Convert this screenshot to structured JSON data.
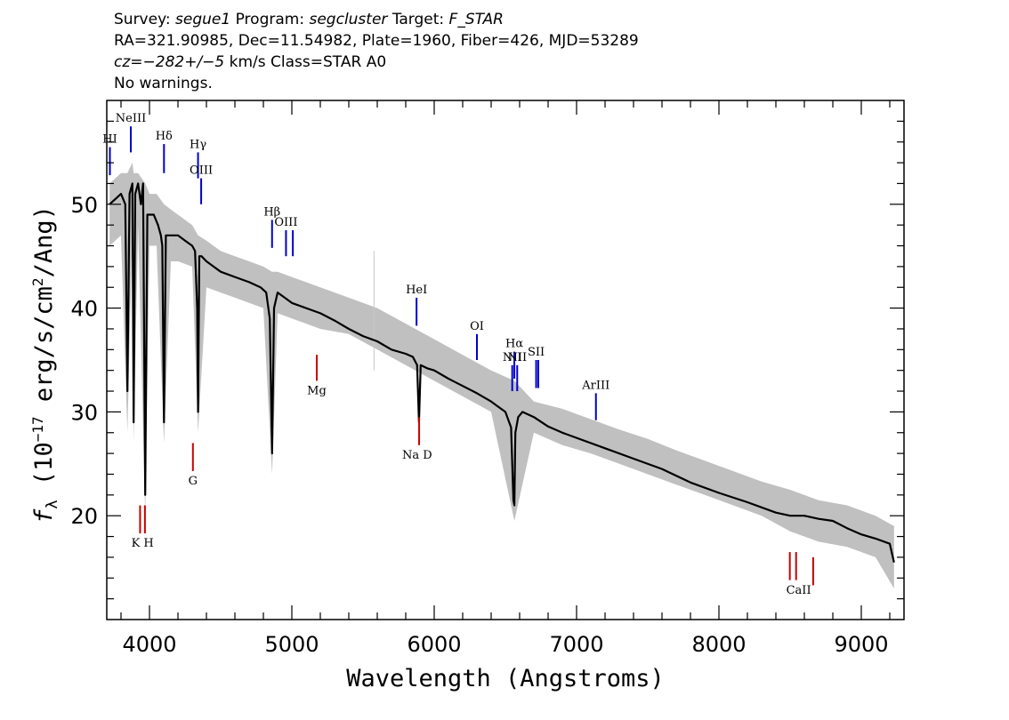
{
  "header": {
    "survey_label": "Survey:",
    "survey_value": "segue1",
    "program_label": "Program:",
    "program_value": "segcluster",
    "target_label": "Target:",
    "target_value": "F_STAR",
    "line2": "RA=321.90985, Dec=11.54982, Plate=1960, Fiber=426, MJD=53289",
    "cz_label": "cz=",
    "cz_value": "−282+/−5",
    "cz_unit_class": " km/s Class=STAR A0",
    "warnings": "No warnings."
  },
  "chart_data": {
    "type": "line",
    "xlabel": "Wavelength (Angstroms)",
    "ylabel_parts": {
      "symbol": "f",
      "sub": "λ",
      "pre": " (10",
      "exp1": "−17",
      "mid": " erg/s/cm",
      "exp2": "2",
      "post": "/Ang)"
    },
    "xlim": [
      3700,
      9300
    ],
    "ylim": [
      10,
      60
    ],
    "x_ticks": [
      4000,
      5000,
      6000,
      7000,
      8000,
      9000
    ],
    "x_tick_labels": [
      "4000",
      "5000",
      "6000",
      "7000",
      "8000",
      "9000"
    ],
    "y_ticks": [
      20,
      30,
      40,
      50
    ],
    "y_tick_labels": [
      "20",
      "30",
      "40",
      "50"
    ],
    "series": [
      {
        "style": "flux",
        "color": "#000000",
        "x": [
          3720,
          3800,
          3830,
          3845,
          3860,
          3880,
          3889,
          3900,
          3920,
          3940,
          3955,
          3970,
          3985,
          4000,
          4030,
          4060,
          4080,
          4090,
          4102,
          4115,
          4130,
          4160,
          4200,
          4250,
          4300,
          4320,
          4335,
          4341,
          4350,
          4365,
          4400,
          4450,
          4500,
          4600,
          4700,
          4780,
          4820,
          4845,
          4861,
          4875,
          4900,
          4950,
          5000,
          5100,
          5200,
          5300,
          5400,
          5500,
          5600,
          5700,
          5800,
          5850,
          5880,
          5893,
          5905,
          5950,
          6000,
          6100,
          6200,
          6300,
          6400,
          6450,
          6500,
          6540,
          6556,
          6563,
          6570,
          6590,
          6620,
          6700,
          6800,
          6900,
          7000,
          7200,
          7400,
          7600,
          7800,
          8000,
          8200,
          8400,
          8500,
          8600,
          8700,
          8800,
          8900,
          9000,
          9100,
          9200,
          9230
        ],
        "y": [
          50,
          51,
          50,
          32,
          51,
          52,
          29,
          51,
          52,
          50,
          52,
          22,
          49,
          49,
          49,
          48,
          47,
          46,
          29,
          47,
          47,
          47,
          47,
          46.5,
          46,
          45.5,
          40,
          30,
          45,
          45,
          44.5,
          44,
          43.5,
          43,
          42.5,
          42,
          41.5,
          39,
          26,
          40,
          41.5,
          41,
          40.5,
          40,
          39.5,
          38.8,
          38,
          37.3,
          36.8,
          36,
          35.6,
          35.3,
          34.5,
          29,
          34.5,
          34.2,
          34,
          33.2,
          32.5,
          31.8,
          31,
          30.5,
          30,
          28.5,
          21.5,
          21,
          28,
          29.5,
          30,
          29.5,
          28.6,
          28,
          27.5,
          26.5,
          25.5,
          24.5,
          23.2,
          22.2,
          21.3,
          20.3,
          20,
          20,
          19.7,
          19.5,
          18.8,
          18.2,
          17.8,
          17.3,
          15.5
        ]
      },
      {
        "style": "error",
        "color": "#c0c0c0",
        "x": [
          3720,
          3800,
          3845,
          3880,
          3889,
          3920,
          3970,
          4000,
          4050,
          4102,
          4150,
          4200,
          4300,
          4341,
          4400,
          4500,
          4600,
          4700,
          4800,
          4861,
          4900,
          5000,
          5200,
          5400,
          5600,
          5800,
          6000,
          6200,
          6400,
          6563,
          6700,
          6900,
          7100,
          7300,
          7500,
          7700,
          7900,
          8100,
          8300,
          8500,
          8700,
          8900,
          9100,
          9230
        ],
        "upper": [
          52,
          53,
          53,
          54,
          53,
          53,
          52,
          51,
          51,
          50,
          49.5,
          49,
          48,
          47,
          46.5,
          45.5,
          45,
          44.5,
          44,
          43.5,
          43.5,
          43,
          42,
          41,
          40,
          38.5,
          37,
          35.5,
          34,
          33,
          31,
          30.3,
          29.3,
          28.3,
          27.4,
          26.3,
          25.3,
          24.3,
          23.3,
          22.5,
          21.5,
          21,
          20,
          19
        ],
        "lower": [
          46,
          47,
          28,
          48,
          27,
          48,
          20,
          46,
          46,
          27,
          44.5,
          44.5,
          44,
          28,
          42,
          41.5,
          41,
          40.5,
          40,
          24,
          39.5,
          39,
          38,
          37.5,
          36,
          34.5,
          33,
          31.5,
          30,
          19.5,
          28,
          26.8,
          26,
          25,
          24,
          23,
          22,
          21,
          20,
          18.5,
          17.5,
          17,
          16,
          13
        ]
      }
    ],
    "emission_lines": [
      {
        "label": "HI",
        "x": 3722,
        "y_top": 55.5,
        "y_bot": 52.8,
        "color": "#0000cc"
      },
      {
        "label": "NeIII",
        "x": 3869,
        "y_top": 57.5,
        "y_bot": 55,
        "color": "#0000cc"
      },
      {
        "label": "Hδ",
        "x": 4102,
        "y_top": 55.8,
        "y_bot": 53,
        "color": "#0000cc"
      },
      {
        "label": "Hγ",
        "x": 4341,
        "y_top": 55,
        "y_bot": 52.5,
        "color": "#0000cc"
      },
      {
        "label": "OIII",
        "x": 4363,
        "y_top": 52.5,
        "y_bot": 50,
        "color": "#0000cc"
      },
      {
        "label": "Hβ",
        "x": 4861,
        "y_top": 48.5,
        "y_bot": 45.8,
        "color": "#0000cc"
      },
      {
        "label": "OIII",
        "x": 4959,
        "y_top": 47.5,
        "y_bot": 45,
        "color": "#0000cc"
      },
      {
        "label": "",
        "x": 5007,
        "y_top": 47.5,
        "y_bot": 45,
        "color": "#0000cc"
      },
      {
        "label": "HeI",
        "x": 5876,
        "y_top": 41,
        "y_bot": 38.3,
        "color": "#0000cc"
      },
      {
        "label": "OI",
        "x": 6300,
        "y_top": 37.5,
        "y_bot": 35,
        "color": "#0000cc"
      },
      {
        "label": "NII",
        "x": 6548,
        "y_top": 34.5,
        "y_bot": 32,
        "color": "#0000cc"
      },
      {
        "label": "Hα",
        "x": 6563,
        "y_top": 35.8,
        "y_bot": 33.2,
        "color": "#0000cc"
      },
      {
        "label": "NII",
        "x": 6583,
        "y_top": 34.5,
        "y_bot": 32,
        "color": "#0000cc"
      },
      {
        "label": "SII",
        "x": 6716,
        "y_top": 35,
        "y_bot": 32.3,
        "color": "#0000cc"
      },
      {
        "label": "",
        "x": 6731,
        "y_top": 35,
        "y_bot": 32.3,
        "color": "#0000cc"
      },
      {
        "label": "ArIII",
        "x": 7136,
        "y_top": 31.8,
        "y_bot": 29.2,
        "color": "#0000cc"
      }
    ],
    "absorption_lines": [
      {
        "label": "",
        "x": 3934,
        "y_top": 21,
        "y_bot": 18.3,
        "color": "#cc0000"
      },
      {
        "label": "",
        "x": 3968,
        "y_top": 21,
        "y_bot": 18.3,
        "color": "#cc0000"
      },
      {
        "label": "G",
        "x": 4305,
        "y_top": 27,
        "y_bot": 24.3,
        "color": "#cc0000"
      },
      {
        "label": "Mg",
        "x": 5175,
        "y_top": 35.5,
        "y_bot": 33,
        "color": "#cc0000"
      },
      {
        "label": "",
        "x": 5894,
        "y_top": 29.5,
        "y_bot": 26.8,
        "color": "#cc0000"
      },
      {
        "label": "",
        "x": 8498,
        "y_top": 16.5,
        "y_bot": 13.8,
        "color": "#cc0000"
      },
      {
        "label": "",
        "x": 8542,
        "y_top": 16.5,
        "y_bot": 13.8,
        "color": "#cc0000"
      },
      {
        "label": "",
        "x": 8662,
        "y_top": 16,
        "y_bot": 13.3,
        "color": "#cc0000"
      }
    ],
    "absorption_group_labels": [
      {
        "label": "K H",
        "x": 3951,
        "y": 17
      },
      {
        "label": "Na  D",
        "x": 5880,
        "y": 25.5
      },
      {
        "label": "CaII",
        "x": 8560,
        "y": 12.5
      }
    ],
    "sky_line": {
      "x": 5577,
      "y_top": 45.5,
      "y_bot": 34,
      "color": "#c8c8c8"
    }
  }
}
